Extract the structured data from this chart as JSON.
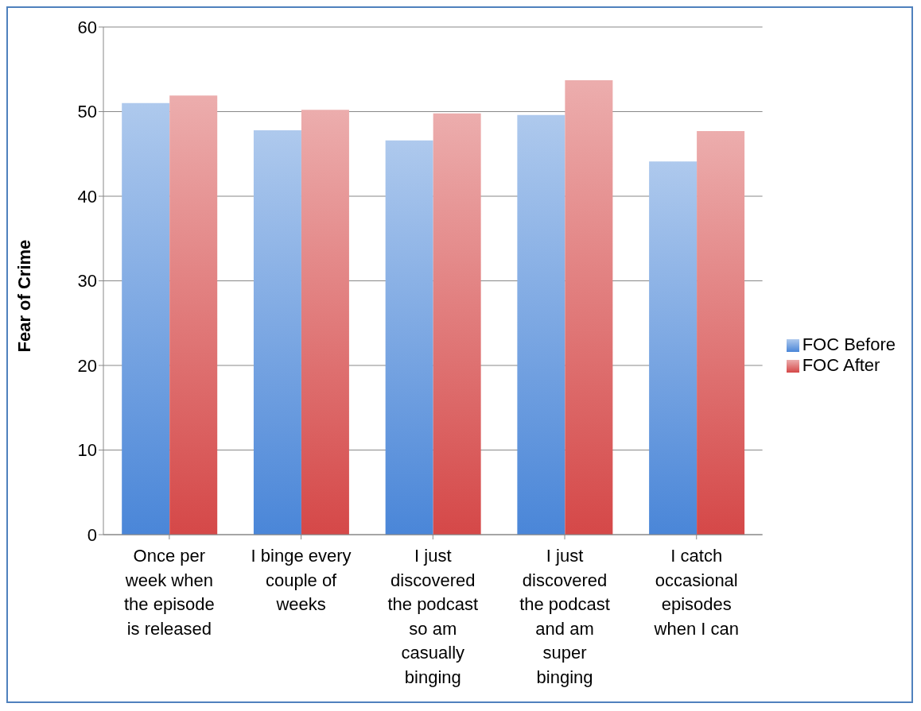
{
  "chart_data": {
    "type": "bar",
    "ylabel": "Fear of Crime",
    "categories": [
      "Once per week when the episode is released",
      "I binge every couple of weeks",
      "I just discovered the podcast so am casually binging",
      "I just discovered the podcast and am super binging",
      "I catch occasional episodes when I can"
    ],
    "series": [
      {
        "name": "FOC Before",
        "color": "#4a86d8",
        "values": [
          51.0,
          47.8,
          46.6,
          49.6,
          44.1
        ]
      },
      {
        "name": "FOC After",
        "color": "#d54848",
        "values": [
          51.9,
          50.2,
          49.8,
          53.7,
          47.7
        ]
      }
    ],
    "ylim": [
      0,
      60
    ],
    "yticks": [
      0,
      10,
      20,
      30,
      40,
      50,
      60
    ],
    "grid": "y",
    "legend": "right"
  }
}
